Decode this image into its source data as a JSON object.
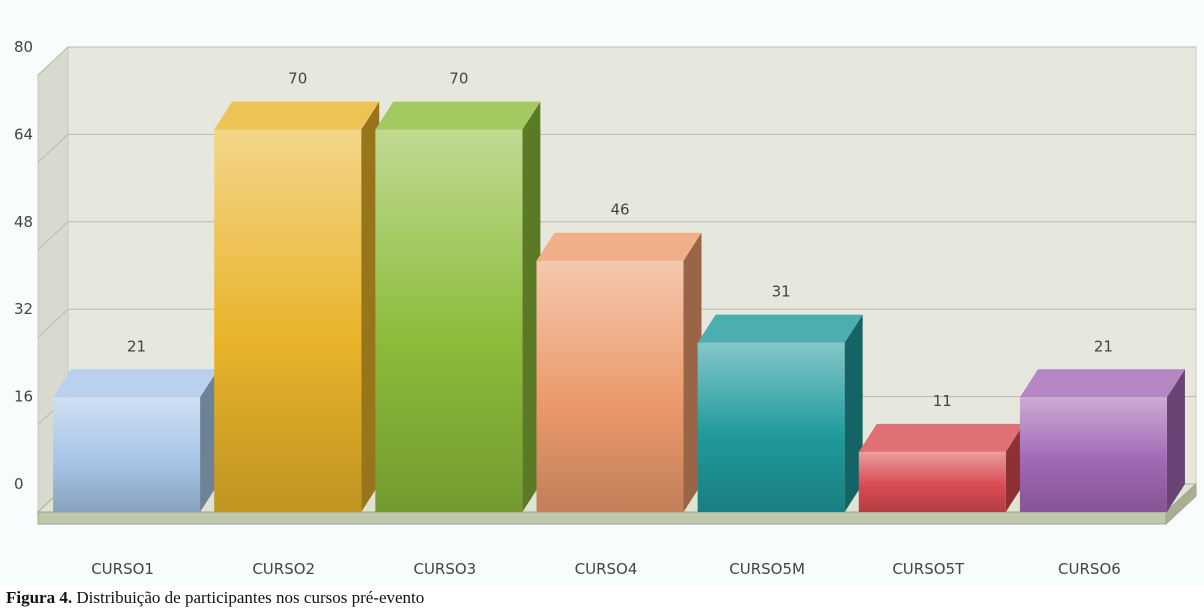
{
  "chart_data": {
    "type": "bar",
    "categories": [
      "CURSO1",
      "CURSO2",
      "CURSO3",
      "CURSO4",
      "CURSO5M",
      "CURSO5T",
      "CURSO6"
    ],
    "values": [
      21,
      70,
      70,
      46,
      31,
      11,
      21
    ],
    "ylim": [
      0,
      80
    ],
    "yticks": [
      0,
      16,
      32,
      48,
      64,
      80
    ],
    "grid": true,
    "style": "3d",
    "bar_colors": [
      "#a7c6e8",
      "#e9b42a",
      "#8cbc3a",
      "#ec9b6c",
      "#1f9a9c",
      "#d94c52",
      "#a268b4"
    ],
    "background_color": "#e6e7dd"
  },
  "caption": {
    "label": "Figura 4.",
    "text": " Distribuição de participantes nos cursos pré-evento"
  }
}
